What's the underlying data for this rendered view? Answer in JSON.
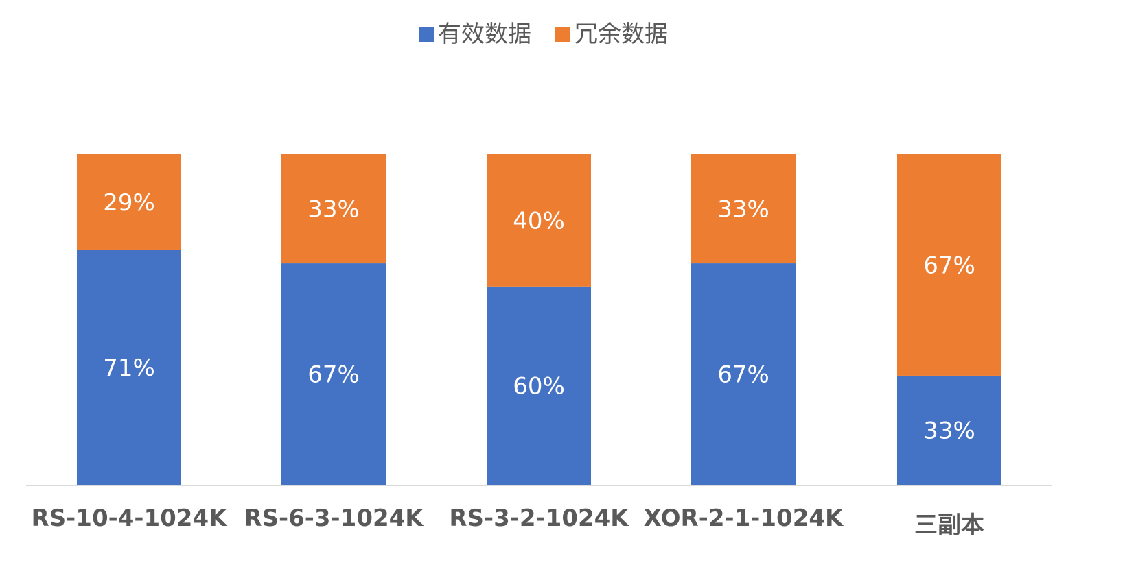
{
  "chart_data": {
    "type": "bar",
    "stacked": true,
    "normalized_percent": true,
    "categories": [
      "RS-10-4-1024K",
      "RS-6-3-1024K",
      "RS-3-2-1024K",
      "XOR-2-1-1024K",
      "三副本"
    ],
    "series": [
      {
        "name": "有效数据",
        "color": "#4472C4",
        "values": [
          71,
          67,
          60,
          67,
          33
        ],
        "labels": [
          "71%",
          "67%",
          "60%",
          "67%",
          "33%"
        ]
      },
      {
        "name": "冗余数据",
        "color": "#ED7D31",
        "values": [
          29,
          33,
          40,
          33,
          67
        ],
        "labels": [
          "29%",
          "33%",
          "40%",
          "33%",
          "67%"
        ]
      }
    ],
    "ylim": [
      0,
      100
    ],
    "legend_position": "top-center",
    "grid": false,
    "axis_color": "#D9D9D9",
    "text_color": "#595959",
    "data_label_color": "#FFFFFF"
  }
}
